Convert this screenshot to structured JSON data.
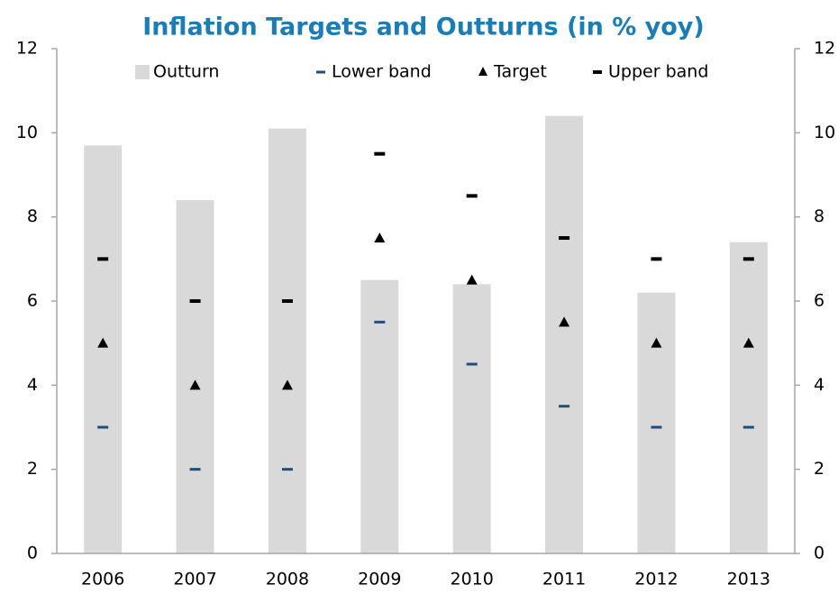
{
  "chart_data": {
    "type": "bar",
    "title": "Inflation Targets and Outturns (in % yoy)",
    "categories": [
      "2006",
      "2007",
      "2008",
      "2009",
      "2010",
      "2011",
      "2012",
      "2013"
    ],
    "series": [
      {
        "name": "Outturn",
        "type": "bar",
        "color": "#d9d9d9",
        "values": [
          9.7,
          8.4,
          10.1,
          6.5,
          6.4,
          10.4,
          6.2,
          7.4
        ]
      },
      {
        "name": "Lower band",
        "type": "dash-thin",
        "color": "#1f4e79",
        "values": [
          3,
          2,
          2,
          5.5,
          4.5,
          3.5,
          3,
          3
        ]
      },
      {
        "name": "Target",
        "type": "triangle",
        "color": "#000000",
        "values": [
          5,
          4,
          4,
          7.5,
          6.5,
          5.5,
          5,
          5
        ]
      },
      {
        "name": "Upper band",
        "type": "dash",
        "color": "#000000",
        "values": [
          7,
          6,
          6,
          9.5,
          8.5,
          7.5,
          7,
          7
        ]
      }
    ],
    "ylim": [
      0,
      12
    ],
    "yticks": [
      0,
      2,
      4,
      6,
      8,
      10,
      12
    ],
    "y2lim": [
      0,
      12
    ],
    "y2ticks": [
      0,
      2,
      4,
      6,
      8,
      10,
      12
    ],
    "legend": "top"
  }
}
